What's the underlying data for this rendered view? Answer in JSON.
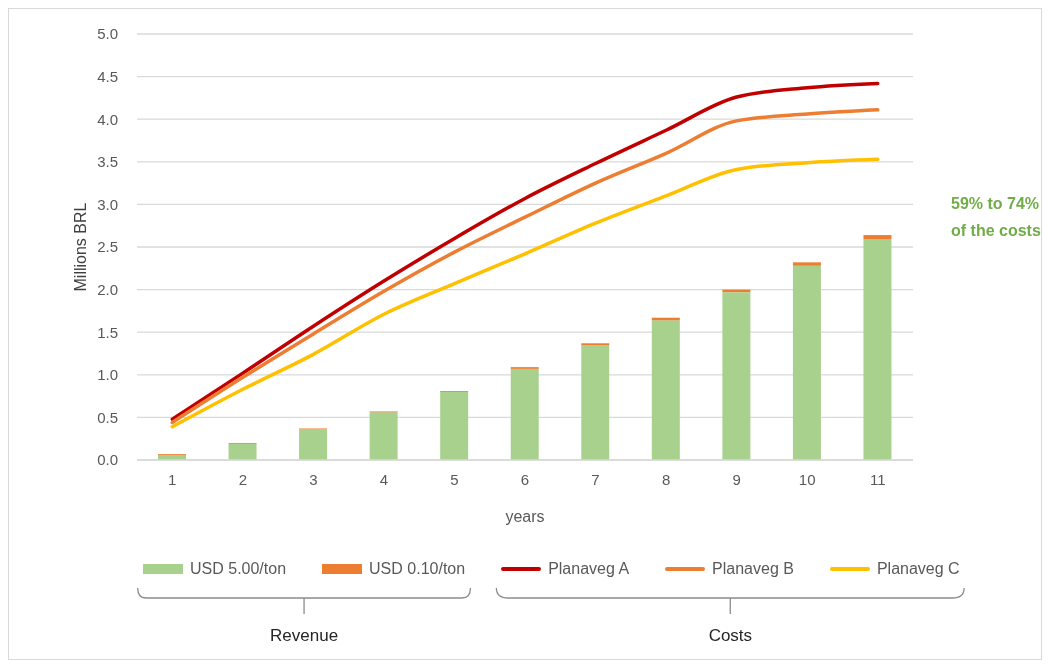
{
  "chart_data": {
    "type": "bar",
    "stacked": true,
    "categories": [
      "1",
      "2",
      "3",
      "4",
      "5",
      "6",
      "7",
      "8",
      "9",
      "10",
      "11"
    ],
    "series": [
      {
        "name": "USD 5.00/ton",
        "color": "#a9d18e",
        "values": [
          0.06,
          0.19,
          0.36,
          0.56,
          0.8,
          1.07,
          1.35,
          1.64,
          1.97,
          2.28,
          2.59
        ]
      },
      {
        "name": "USD 0.10/ton",
        "color": "#ed7d31",
        "values": [
          0.01,
          0.01,
          0.01,
          0.01,
          0.01,
          0.02,
          0.02,
          0.03,
          0.03,
          0.04,
          0.05
        ]
      },
      {
        "name": "Planaveg A",
        "type": "line",
        "color": "#c00000",
        "values": [
          0.48,
          1.02,
          1.57,
          2.1,
          2.6,
          3.07,
          3.48,
          3.87,
          4.26,
          4.37,
          4.42
        ]
      },
      {
        "name": "Planaveg B",
        "type": "line",
        "color": "#ed7d31",
        "values": [
          0.44,
          0.97,
          1.48,
          1.98,
          2.44,
          2.85,
          3.25,
          3.6,
          3.98,
          4.06,
          4.11
        ]
      },
      {
        "name": "Planaveg C",
        "type": "line",
        "color": "#ffc000",
        "values": [
          0.39,
          0.83,
          1.24,
          1.71,
          2.07,
          2.42,
          2.78,
          3.1,
          3.41,
          3.49,
          3.53
        ]
      }
    ],
    "xlabel": "years",
    "ylabel": "Millions BRL",
    "ylim": [
      0,
      5
    ],
    "yticks": [
      {
        "value": 0,
        "label": "0.0"
      },
      {
        "value": 0.5,
        "label": "0.5"
      },
      {
        "value": 1,
        "label": "1.0"
      },
      {
        "value": 1.5,
        "label": "1.5"
      },
      {
        "value": 2,
        "label": "2.0"
      },
      {
        "value": 2.5,
        "label": "2.5"
      },
      {
        "value": 3,
        "label": "3.0"
      },
      {
        "value": 3.5,
        "label": "3.5"
      },
      {
        "value": 4,
        "label": "4.0"
      },
      {
        "value": 4.5,
        "label": "4.5"
      },
      {
        "value": 5,
        "label": "5.0"
      }
    ],
    "grid": "y",
    "legend": "bottom",
    "annotations": [
      "59% to 74% of the costs",
      "Revenue",
      "Costs"
    ]
  }
}
